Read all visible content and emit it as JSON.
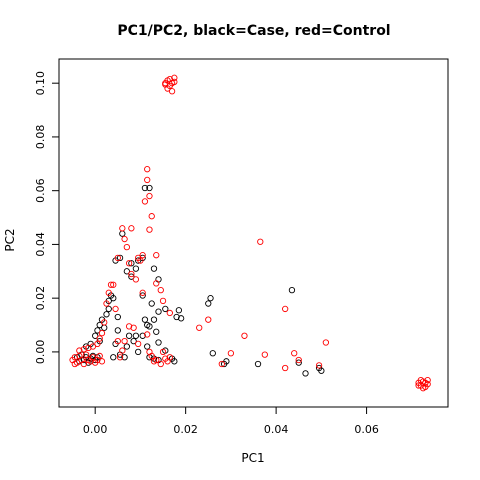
{
  "chart_data": {
    "type": "scatter",
    "title": "PC1/PC2, black=Case, red=Control",
    "xlabel": "PC1",
    "ylabel": "PC2",
    "xlim": [
      -0.008,
      0.078
    ],
    "ylim": [
      -0.0205,
      0.109
    ],
    "xticks": [
      0.0,
      0.02,
      0.04,
      0.06
    ],
    "xtick_labels": [
      "0.00",
      "0.02",
      "0.04",
      "0.06"
    ],
    "yticks": [
      0.0,
      0.02,
      0.04,
      0.06,
      0.08,
      0.1
    ],
    "ytick_labels": [
      "0.00",
      "0.02",
      "0.04",
      "0.06",
      "0.08",
      "0.10"
    ],
    "grid": false,
    "legend": "none",
    "series": [
      {
        "color": "#000000",
        "points": [
          [
            -0.004,
            -0.002
          ],
          [
            -0.0035,
            -0.0035
          ],
          [
            -0.003,
            -0.001
          ],
          [
            -0.0025,
            -0.003
          ],
          [
            -0.002,
            -0.002
          ],
          [
            -0.0015,
            -0.004
          ],
          [
            -0.001,
            -0.0025
          ],
          [
            -0.0005,
            -0.0015
          ],
          [
            0.0,
            -0.003
          ],
          [
            0.0005,
            -0.002
          ],
          [
            -0.002,
            0.002
          ],
          [
            -0.001,
            0.003
          ],
          [
            0.0,
            0.006
          ],
          [
            0.0005,
            0.008
          ],
          [
            0.001,
            0.01
          ],
          [
            0.0015,
            0.012
          ],
          [
            0.002,
            0.009
          ],
          [
            0.001,
            0.004
          ],
          [
            0.0025,
            0.014
          ],
          [
            0.003,
            0.016
          ],
          [
            0.003,
            0.019
          ],
          [
            0.0035,
            0.021
          ],
          [
            0.004,
            0.02
          ],
          [
            0.005,
            0.013
          ],
          [
            0.005,
            0.008
          ],
          [
            0.0045,
            0.003
          ],
          [
            0.004,
            -0.002
          ],
          [
            0.0055,
            -0.001
          ],
          [
            0.0065,
            -0.002
          ],
          [
            0.007,
            0.002
          ],
          [
            0.0075,
            0.006
          ],
          [
            0.0085,
            0.004
          ],
          [
            0.009,
            0.006
          ],
          [
            0.0095,
            0.0
          ],
          [
            0.0045,
            0.034
          ],
          [
            0.0055,
            0.035
          ],
          [
            0.006,
            0.044
          ],
          [
            0.007,
            0.03
          ],
          [
            0.008,
            0.028
          ],
          [
            0.008,
            0.033
          ],
          [
            0.009,
            0.031
          ],
          [
            0.0095,
            0.034
          ],
          [
            0.0105,
            0.035
          ],
          [
            0.011,
            0.061
          ],
          [
            0.012,
            0.061
          ],
          [
            0.013,
            0.031
          ],
          [
            0.014,
            0.027
          ],
          [
            0.014,
            0.015
          ],
          [
            0.0155,
            0.016
          ],
          [
            0.013,
            0.012
          ],
          [
            0.011,
            0.012
          ],
          [
            0.0115,
            0.01
          ],
          [
            0.0105,
            0.021
          ],
          [
            0.0125,
            0.018
          ],
          [
            0.012,
            0.0095
          ],
          [
            0.0135,
            0.0075
          ],
          [
            0.014,
            0.0035
          ],
          [
            0.0105,
            0.006
          ],
          [
            0.0115,
            0.002
          ],
          [
            0.012,
            -0.002
          ],
          [
            0.013,
            -0.0025
          ],
          [
            0.014,
            -0.003
          ],
          [
            0.0155,
            0.0005
          ],
          [
            0.017,
            -0.0025
          ],
          [
            0.0175,
            -0.0035
          ],
          [
            0.019,
            0.0125
          ],
          [
            0.0185,
            0.0155
          ],
          [
            0.018,
            0.013
          ],
          [
            0.0255,
            0.02
          ],
          [
            0.025,
            0.018
          ],
          [
            0.026,
            -0.0005
          ],
          [
            0.0285,
            -0.0045
          ],
          [
            0.029,
            -0.0035
          ],
          [
            0.036,
            -0.0045
          ],
          [
            0.0435,
            0.023
          ],
          [
            0.045,
            -0.004
          ],
          [
            0.0465,
            -0.008
          ],
          [
            0.0495,
            -0.006
          ],
          [
            0.05,
            -0.007
          ]
        ]
      },
      {
        "color": "#ff0000",
        "points": [
          [
            -0.005,
            -0.003
          ],
          [
            -0.0045,
            -0.002
          ],
          [
            -0.004,
            -0.004
          ],
          [
            -0.0035,
            -0.0015
          ],
          [
            -0.003,
            -0.003
          ],
          [
            -0.0025,
            -0.0045
          ],
          [
            -0.002,
            -0.001
          ],
          [
            -0.0015,
            -0.003
          ],
          [
            -0.001,
            -0.0035
          ],
          [
            -0.0005,
            -0.002
          ],
          [
            0.0,
            -0.004
          ],
          [
            0.0005,
            -0.003
          ],
          [
            0.001,
            -0.0015
          ],
          [
            0.0015,
            -0.0035
          ],
          [
            -0.0045,
            -0.0045
          ],
          [
            -0.0035,
            0.0005
          ],
          [
            -0.0025,
            0.001
          ],
          [
            -0.0015,
            0.0015
          ],
          [
            -0.0005,
            0.002
          ],
          [
            0.0005,
            0.003
          ],
          [
            0.001,
            0.005
          ],
          [
            0.0015,
            0.007
          ],
          [
            0.002,
            0.011
          ],
          [
            0.0025,
            0.018
          ],
          [
            0.003,
            0.022
          ],
          [
            0.0035,
            0.025
          ],
          [
            0.004,
            0.025
          ],
          [
            0.0045,
            0.016
          ],
          [
            0.005,
            0.004
          ],
          [
            0.0055,
            -0.002
          ],
          [
            0.006,
            0.0005
          ],
          [
            0.0065,
            0.004
          ],
          [
            0.0075,
            0.0095
          ],
          [
            0.0085,
            0.009
          ],
          [
            0.0095,
            0.003
          ],
          [
            0.005,
            0.035
          ],
          [
            0.006,
            0.046
          ],
          [
            0.0065,
            0.042
          ],
          [
            0.007,
            0.039
          ],
          [
            0.0075,
            0.033
          ],
          [
            0.008,
            0.046
          ],
          [
            0.008,
            0.029
          ],
          [
            0.009,
            0.027
          ],
          [
            0.0095,
            0.035
          ],
          [
            0.01,
            0.034
          ],
          [
            0.0105,
            0.036
          ],
          [
            0.011,
            0.056
          ],
          [
            0.0115,
            0.064
          ],
          [
            0.0115,
            0.068
          ],
          [
            0.012,
            0.058
          ],
          [
            0.012,
            0.0455
          ],
          [
            0.0125,
            0.0505
          ],
          [
            0.0135,
            0.036
          ],
          [
            0.0135,
            0.0255
          ],
          [
            0.0145,
            0.023
          ],
          [
            0.015,
            0.019
          ],
          [
            0.0165,
            0.0145
          ],
          [
            0.0105,
            0.022
          ],
          [
            0.0115,
            0.0065
          ],
          [
            0.012,
            0.0
          ],
          [
            0.0125,
            -0.0015
          ],
          [
            0.013,
            -0.0035
          ],
          [
            0.0135,
            -0.003
          ],
          [
            0.0145,
            -0.0045
          ],
          [
            0.0155,
            -0.0025
          ],
          [
            0.016,
            -0.0035
          ],
          [
            0.0165,
            -0.002
          ],
          [
            0.015,
            0.0
          ],
          [
            0.0155,
            0.0995
          ],
          [
            0.016,
            0.101
          ],
          [
            0.0165,
            0.099
          ],
          [
            0.017,
            0.1
          ],
          [
            0.0175,
            0.102
          ],
          [
            0.016,
            0.098
          ],
          [
            0.0165,
            0.1015
          ],
          [
            0.017,
            0.097
          ],
          [
            0.0175,
            0.1005
          ],
          [
            0.0155,
            0.1
          ],
          [
            0.023,
            0.009
          ],
          [
            0.025,
            0.012
          ],
          [
            0.028,
            -0.0045
          ],
          [
            0.03,
            -0.0005
          ],
          [
            0.033,
            0.006
          ],
          [
            0.0365,
            0.041
          ],
          [
            0.0375,
            -0.001
          ],
          [
            0.042,
            0.016
          ],
          [
            0.042,
            -0.006
          ],
          [
            0.044,
            -0.0005
          ],
          [
            0.045,
            -0.003
          ],
          [
            0.0495,
            -0.005
          ],
          [
            0.051,
            0.0035
          ],
          [
            0.0715,
            -0.0115
          ],
          [
            0.072,
            -0.0125
          ],
          [
            0.0725,
            -0.011
          ],
          [
            0.073,
            -0.013
          ],
          [
            0.0735,
            -0.012
          ],
          [
            0.072,
            -0.0105
          ],
          [
            0.0725,
            -0.0135
          ],
          [
            0.073,
            -0.0115
          ],
          [
            0.0715,
            -0.0125
          ],
          [
            0.0735,
            -0.0105
          ]
        ]
      }
    ]
  }
}
